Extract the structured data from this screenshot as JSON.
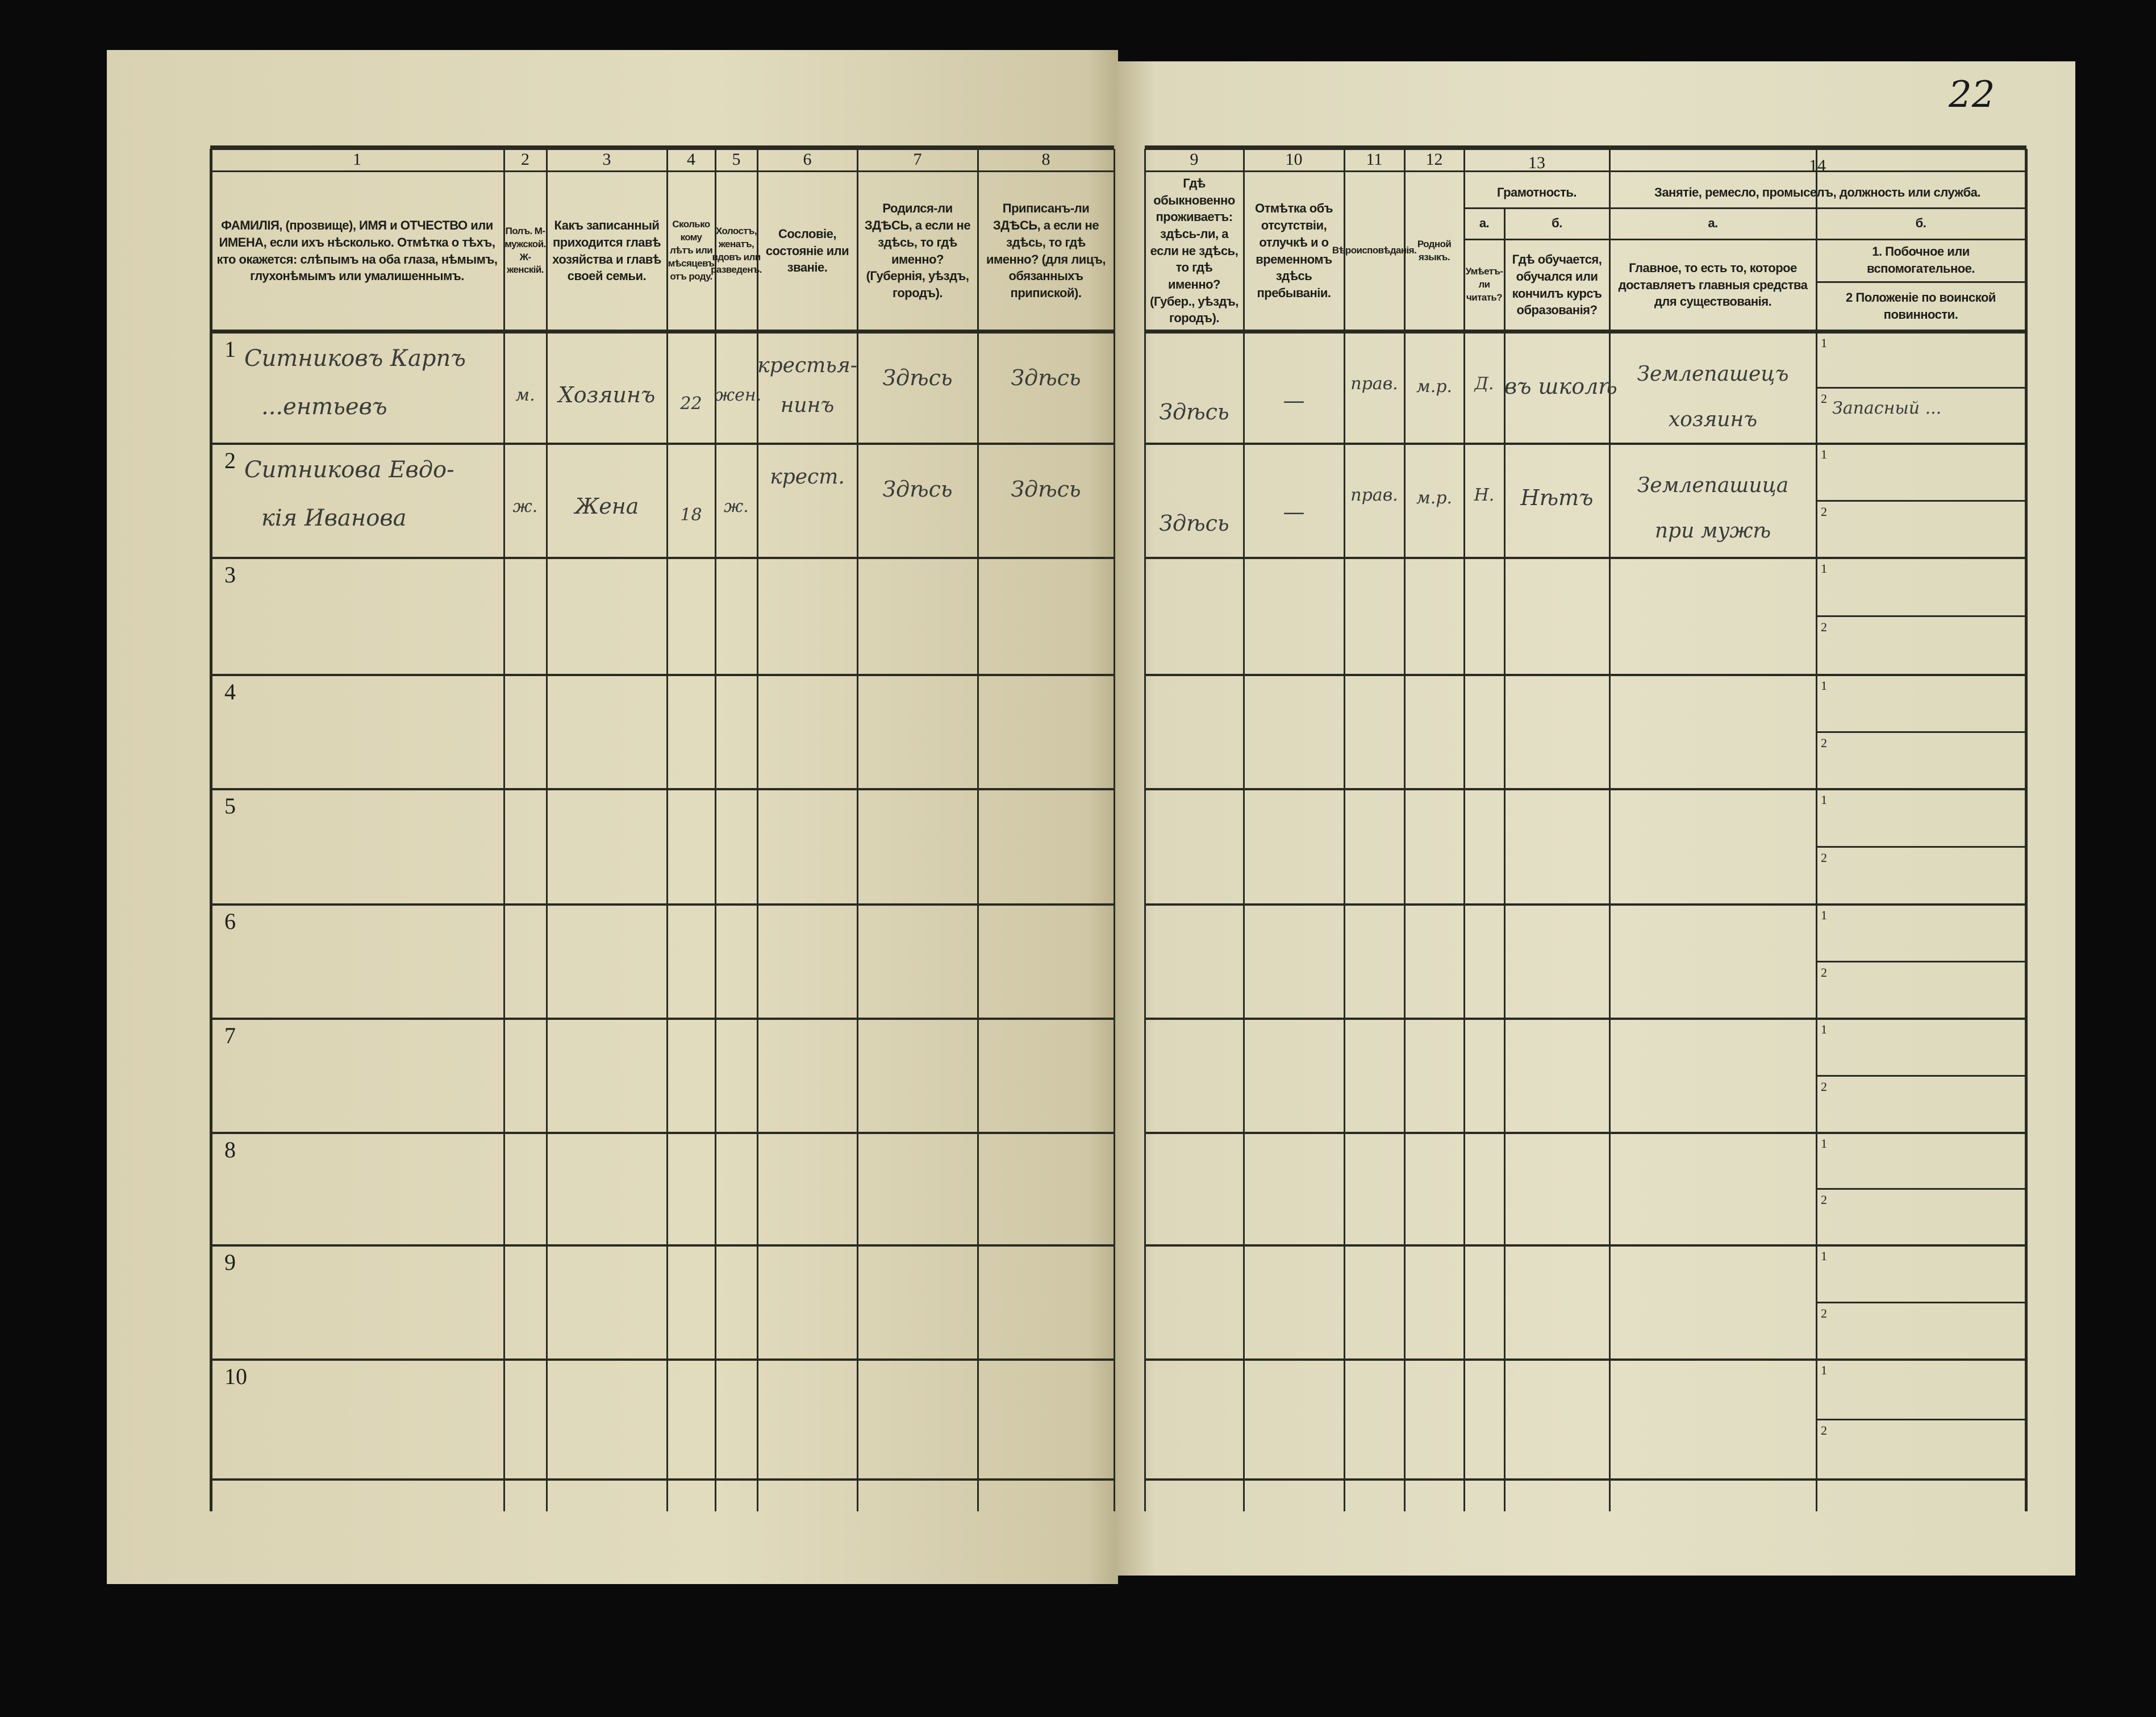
{
  "page_number": "22",
  "columns": {
    "c1": {
      "num": "1",
      "text": "ФАМИЛІЯ, (прозвище), ИМЯ и ОТЧЕСТВО или ИМЕНА, если ихъ нѣсколько. Отмѣтка о тѣхъ, кто окажется: слѣпымъ на оба глаза, нѣмымъ, глухонѣмымъ или умалишеннымъ."
    },
    "c2": {
      "num": "2",
      "text": "Полъ. М-мужской. Ж-женскій."
    },
    "c3": {
      "num": "3",
      "text": "Какъ записанный приходится главѣ хозяйства и главѣ своей семьи."
    },
    "c4": {
      "num": "4",
      "text": "Сколько кому лѣтъ или мѣсяцевъ отъ роду."
    },
    "c5": {
      "num": "5",
      "text": "Холостъ, женатъ, вдовъ или разведенъ."
    },
    "c6": {
      "num": "6",
      "text": "Сословіе, состояніе или званіе."
    },
    "c7": {
      "num": "7",
      "text": "Родился-ли ЗДѢСЬ, а если не здѣсь, то гдѣ именно? (Губернія, уѣздъ, городъ)."
    },
    "c8": {
      "num": "8",
      "text": "Приписанъ-ли ЗДѢСЬ, а если не здѣсь, то гдѣ именно? (для лицъ, обязанныхъ припиской)."
    },
    "c9": {
      "num": "9",
      "text": "Гдѣ обыкновенно проживаетъ: здѣсь-ли, а если не здѣсь, то гдѣ именно? (Губер., уѣздъ, городъ)."
    },
    "c10": {
      "num": "10",
      "text": "Отмѣтка объ отсутствіи, отлучкѣ и о временномъ здѣсь пребываніи."
    },
    "c11": {
      "num": "11",
      "text": "Вѣроисповѣданія."
    },
    "c12": {
      "num": "12",
      "text": "Родной языкъ."
    },
    "c13": {
      "num": "13",
      "title": "Грамотность.",
      "a_label": "а.",
      "a_text": "Умѣетъ-ли читать?",
      "b_label": "б.",
      "b_text": "Гдѣ обучается, обучался или кончилъ курсъ образованія?"
    },
    "c14": {
      "num": "14",
      "title": "Занятіе, ремесло, промыселъ, должность или служба.",
      "a_label": "а.",
      "a_text": "Главное, то есть то, которое доставляетъ главныя средства для существованія.",
      "b_label": "б.",
      "b_text1": "1. Побочное или вспомогательное.",
      "b_text2": "2 Положеніе по воинской повинности."
    }
  },
  "sub_labels": [
    "1",
    "2"
  ],
  "rows": [
    {
      "n": "1",
      "c1a": "Ситниковъ Карпъ",
      "c1b": "...ентьевъ",
      "c2": "м.",
      "c3": "Хозяинъ",
      "c4": "22",
      "c5": "жен.",
      "c6a": "крестья-",
      "c6b": "нинъ",
      "c7": "Здѣсь",
      "c8": "Здѣсь",
      "c9": "Здѣсь",
      "c10": "—",
      "c11": "прав.",
      "c12": "м.р.",
      "c13a": "Д.",
      "c13b": "въ школѣ",
      "c14a1": "Землепашецъ",
      "c14a2": "хозяинъ",
      "c14b1": "",
      "c14b2": "Запасный ..."
    },
    {
      "n": "2",
      "c1a": "Ситникова Евдо-",
      "c1b": "кія Иванова",
      "c2": "ж.",
      "c3": "Жена",
      "c4": "18",
      "c5": "ж.",
      "c6a": "крест.",
      "c6b": "",
      "c7": "Здѣсь",
      "c8": "Здѣсь",
      "c9": "Здѣсь",
      "c10": "—",
      "c11": "прав.",
      "c12": "м.р.",
      "c13a": "Н.",
      "c13b": "Нѣтъ",
      "c14a1": "Землепашица",
      "c14a2": "при мужѣ",
      "c14b1": "",
      "c14b2": ""
    },
    {
      "n": "3"
    },
    {
      "n": "4"
    },
    {
      "n": "5"
    },
    {
      "n": "6"
    },
    {
      "n": "7"
    },
    {
      "n": "8"
    },
    {
      "n": "9"
    },
    {
      "n": "10"
    }
  ]
}
